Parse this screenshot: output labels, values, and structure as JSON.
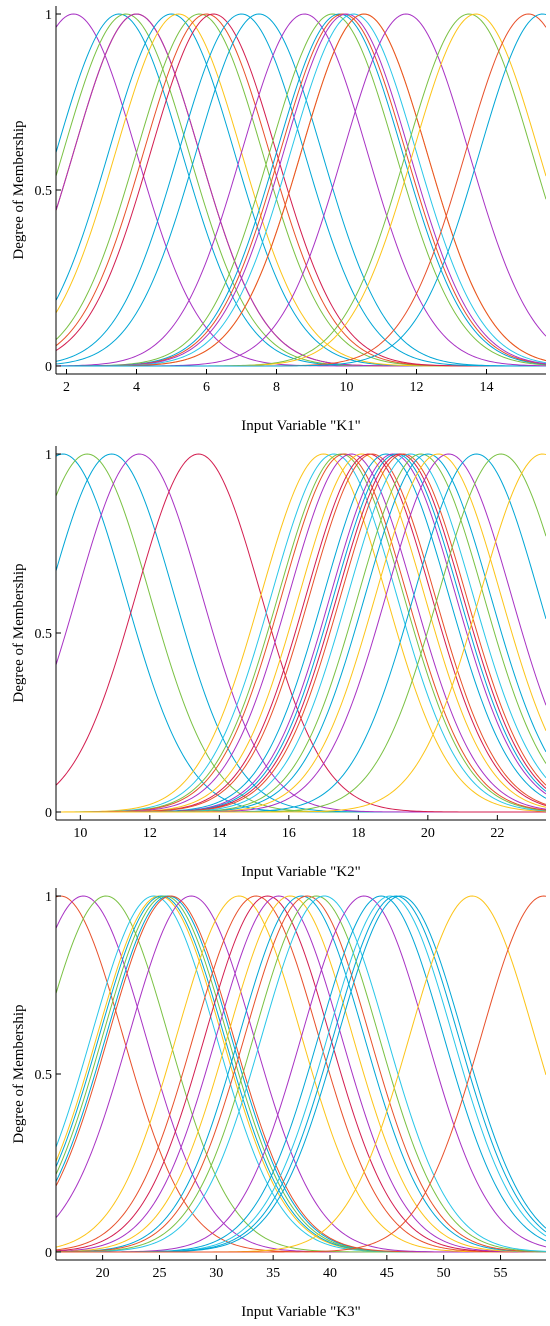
{
  "chart_data": [
    {
      "type": "line",
      "xlabel": "Input Variable \"K1\"",
      "ylabel": "Degree of Membership",
      "xlim": [
        1.7,
        15.7
      ],
      "ylim": [
        0,
        1
      ],
      "xticks": [
        2,
        4,
        6,
        8,
        10,
        12,
        14
      ],
      "yticks": [
        0,
        0.5,
        1
      ],
      "ytick_labels": [
        "0",
        "0.5",
        "1"
      ],
      "grid": false,
      "legend": "none",
      "series": [
        {
          "color": "#a832c4",
          "center": 2.2,
          "sigma": 1.8
        },
        {
          "color": "#00a6d6",
          "center": 3.5,
          "sigma": 1.8
        },
        {
          "color": "#7ac143",
          "center": 3.7,
          "sigma": 1.8
        },
        {
          "color": "#fcc418",
          "center": 4.0,
          "sigma": 1.8
        },
        {
          "color": "#e8502a",
          "center": 4.0,
          "sigma": 1.8
        },
        {
          "color": "#a832c4",
          "center": 4.0,
          "sigma": 1.8
        },
        {
          "color": "#00a6d6",
          "center": 5.0,
          "sigma": 1.8
        },
        {
          "color": "#fcc418",
          "center": 5.2,
          "sigma": 1.8
        },
        {
          "color": "#7ac143",
          "center": 5.8,
          "sigma": 1.8
        },
        {
          "color": "#e8502a",
          "center": 6.0,
          "sigma": 1.8
        },
        {
          "color": "#d31d4f",
          "center": 6.2,
          "sigma": 1.8
        },
        {
          "color": "#00a6d6",
          "center": 7.0,
          "sigma": 1.8
        },
        {
          "color": "#00a6d6",
          "center": 7.5,
          "sigma": 1.8
        },
        {
          "color": "#a832c4",
          "center": 8.8,
          "sigma": 1.8
        },
        {
          "color": "#7ac143",
          "center": 9.6,
          "sigma": 1.8
        },
        {
          "color": "#00a6d6",
          "center": 9.8,
          "sigma": 1.8
        },
        {
          "color": "#e8502a",
          "center": 9.9,
          "sigma": 1.8
        },
        {
          "color": "#a832c4",
          "center": 10.0,
          "sigma": 1.8
        },
        {
          "color": "#29c6e8",
          "center": 10.2,
          "sigma": 1.8
        },
        {
          "color": "#fcc418",
          "center": 10.5,
          "sigma": 1.8
        },
        {
          "color": "#e8502a",
          "center": 10.5,
          "sigma": 1.8
        },
        {
          "color": "#a832c4",
          "center": 11.7,
          "sigma": 1.8
        },
        {
          "color": "#7ac143",
          "center": 13.5,
          "sigma": 1.8
        },
        {
          "color": "#fcc418",
          "center": 13.7,
          "sigma": 1.8
        },
        {
          "color": "#e8502a",
          "center": 15.2,
          "sigma": 1.8
        },
        {
          "color": "#00a6d6",
          "center": 15.6,
          "sigma": 1.8
        }
      ]
    },
    {
      "type": "line",
      "xlabel": "Input Variable \"K2\"",
      "ylabel": "Degree of Membership",
      "xlim": [
        9.3,
        23.4
      ],
      "ylim": [
        0,
        1
      ],
      "xticks": [
        10,
        12,
        14,
        16,
        18,
        20,
        22
      ],
      "yticks": [
        0,
        0.5,
        1
      ],
      "ytick_labels": [
        "0",
        "0.5",
        "1"
      ],
      "grid": false,
      "legend": "none",
      "series": [
        {
          "color": "#00a6d6",
          "center": 9.5,
          "sigma": 1.8
        },
        {
          "color": "#7ac143",
          "center": 10.2,
          "sigma": 1.8
        },
        {
          "color": "#00a6d6",
          "center": 10.9,
          "sigma": 1.8
        },
        {
          "color": "#a832c4",
          "center": 11.7,
          "sigma": 1.8
        },
        {
          "color": "#d31d4f",
          "center": 13.4,
          "sigma": 1.8
        },
        {
          "color": "#fcc418",
          "center": 17.0,
          "sigma": 1.8
        },
        {
          "color": "#29c6e8",
          "center": 17.3,
          "sigma": 1.8
        },
        {
          "color": "#7ac143",
          "center": 17.5,
          "sigma": 1.8
        },
        {
          "color": "#e8502a",
          "center": 17.6,
          "sigma": 1.8
        },
        {
          "color": "#a832c4",
          "center": 17.8,
          "sigma": 1.8
        },
        {
          "color": "#fcc418",
          "center": 18.1,
          "sigma": 1.8
        },
        {
          "color": "#d31d4f",
          "center": 18.3,
          "sigma": 1.8
        },
        {
          "color": "#e8502a",
          "center": 18.4,
          "sigma": 1.8
        },
        {
          "color": "#00a6d6",
          "center": 18.8,
          "sigma": 1.8
        },
        {
          "color": "#a832c4",
          "center": 19.0,
          "sigma": 1.8
        },
        {
          "color": "#00a6d6",
          "center": 19.1,
          "sigma": 1.8
        },
        {
          "color": "#d31d4f",
          "center": 19.2,
          "sigma": 1.8
        },
        {
          "color": "#e8502a",
          "center": 19.3,
          "sigma": 1.8
        },
        {
          "color": "#29c6e8",
          "center": 19.5,
          "sigma": 1.8
        },
        {
          "color": "#7ac143",
          "center": 19.8,
          "sigma": 1.8
        },
        {
          "color": "#00a6d6",
          "center": 20.0,
          "sigma": 1.8
        },
        {
          "color": "#fcc418",
          "center": 20.3,
          "sigma": 1.8
        },
        {
          "color": "#a832c4",
          "center": 20.6,
          "sigma": 1.8
        },
        {
          "color": "#00a6d6",
          "center": 21.4,
          "sigma": 1.8
        },
        {
          "color": "#7ac143",
          "center": 22.1,
          "sigma": 1.8
        },
        {
          "color": "#fcc418",
          "center": 23.3,
          "sigma": 1.8
        }
      ]
    },
    {
      "type": "line",
      "xlabel": "Input Variable \"K3\"",
      "ylabel": "Degree of Membership",
      "xlim": [
        15.9,
        59
      ],
      "ylim": [
        0,
        1
      ],
      "xticks": [
        20,
        25,
        30,
        35,
        40,
        45,
        50,
        55
      ],
      "yticks": [
        0,
        0.5,
        1
      ],
      "ytick_labels": [
        "0",
        "0.5",
        "1"
      ],
      "grid": false,
      "legend": "none",
      "series": [
        {
          "color": "#e8502a",
          "center": 16.3,
          "sigma": 5.5
        },
        {
          "color": "#a832c4",
          "center": 18.3,
          "sigma": 5.5
        },
        {
          "color": "#7ac143",
          "center": 20.3,
          "sigma": 5.5
        },
        {
          "color": "#29c6e8",
          "center": 24.5,
          "sigma": 5.5
        },
        {
          "color": "#fcc418",
          "center": 25.0,
          "sigma": 5.5
        },
        {
          "color": "#00a6d6",
          "center": 25.2,
          "sigma": 5.5
        },
        {
          "color": "#7ac143",
          "center": 25.5,
          "sigma": 5.5
        },
        {
          "color": "#00a6d6",
          "center": 25.8,
          "sigma": 5.5
        },
        {
          "color": "#e8502a",
          "center": 26.0,
          "sigma": 5.5
        },
        {
          "color": "#a832c4",
          "center": 27.8,
          "sigma": 5.5
        },
        {
          "color": "#fcc418",
          "center": 32.0,
          "sigma": 5.5
        },
        {
          "color": "#e8502a",
          "center": 33.5,
          "sigma": 5.5
        },
        {
          "color": "#d31d4f",
          "center": 34.5,
          "sigma": 5.5
        },
        {
          "color": "#a832c4",
          "center": 35.5,
          "sigma": 5.5
        },
        {
          "color": "#fcc418",
          "center": 36.5,
          "sigma": 5.5
        },
        {
          "color": "#00a6d6",
          "center": 37.5,
          "sigma": 5.5
        },
        {
          "color": "#e8502a",
          "center": 38.0,
          "sigma": 5.5
        },
        {
          "color": "#7ac143",
          "center": 38.8,
          "sigma": 5.5
        },
        {
          "color": "#29c6e8",
          "center": 39.5,
          "sigma": 5.5
        },
        {
          "color": "#a832c4",
          "center": 43.0,
          "sigma": 5.5
        },
        {
          "color": "#00a6d6",
          "center": 44.5,
          "sigma": 5.5
        },
        {
          "color": "#29c6e8",
          "center": 45.3,
          "sigma": 5.5
        },
        {
          "color": "#00a6d6",
          "center": 45.8,
          "sigma": 5.5
        },
        {
          "color": "#00a6d6",
          "center": 46.2,
          "sigma": 5.5
        },
        {
          "color": "#fcc418",
          "center": 52.5,
          "sigma": 5.5
        },
        {
          "color": "#e8502a",
          "center": 58.8,
          "sigma": 5.5
        }
      ]
    }
  ]
}
